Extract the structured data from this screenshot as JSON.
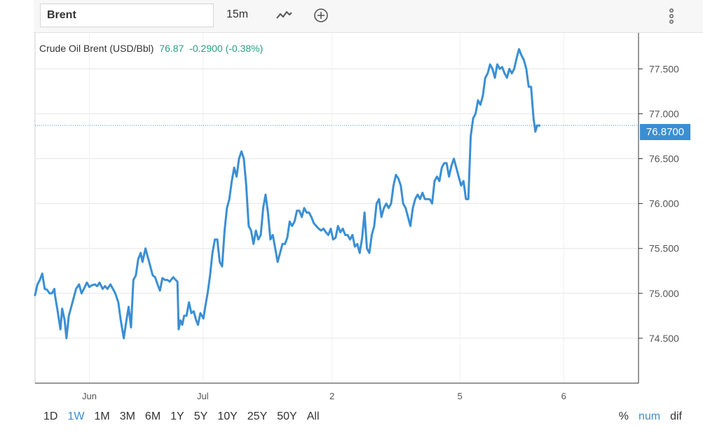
{
  "toolbar": {
    "symbol": "Brent",
    "interval": "15m",
    "chart_type_icon": "line-chart-icon",
    "add_icon": "plus-circle-icon",
    "menu_icon": "vertical-dots-icon"
  },
  "legend": {
    "name": "Crude Oil Brent (USD/Bbl)",
    "last": "76.87",
    "change": "-0.2900 (-0.38%)"
  },
  "price_tag": "76.8700",
  "range_buttons": [
    "1D",
    "1W",
    "1M",
    "3M",
    "6M",
    "1Y",
    "5Y",
    "10Y",
    "25Y",
    "50Y",
    "All"
  ],
  "active_range": "1W",
  "mode_buttons": [
    "%",
    "num",
    "dif"
  ],
  "active_mode": "num",
  "colors": {
    "line": "#3a8fd4",
    "accent": "#3a8fd4",
    "positive": "#2a9d7f"
  },
  "chart_data": {
    "type": "line",
    "title": "Crude Oil Brent (USD/Bbl)",
    "ylim": [
      74.0,
      77.9
    ],
    "yticks": [
      "74.500",
      "75.000",
      "75.500",
      "76.000",
      "76.500",
      "77.000",
      "77.500"
    ],
    "ytick_values": [
      74.5,
      75.0,
      75.5,
      76.0,
      76.5,
      77.0,
      77.5
    ],
    "xlim": [
      0,
      100
    ],
    "xticks": [
      {
        "label": "Jun",
        "x": 9
      },
      {
        "label": "Jul",
        "x": 27.8
      },
      {
        "label": "2",
        "x": 49.2
      },
      {
        "label": "5",
        "x": 70.4
      },
      {
        "label": "6",
        "x": 87.6
      }
    ],
    "last_value": 76.87,
    "grid": true,
    "series": [
      {
        "values": [
          [
            0,
            74.98
          ],
          [
            0.4,
            75.1
          ],
          [
            0.8,
            75.15
          ],
          [
            1.2,
            75.22
          ],
          [
            1.6,
            75.05
          ],
          [
            2.0,
            75.04
          ],
          [
            2.4,
            75.0
          ],
          [
            2.8,
            75.0
          ],
          [
            3.2,
            75.05
          ],
          [
            3.3,
            74.98
          ],
          [
            3.7,
            74.82
          ],
          [
            4.2,
            74.6
          ],
          [
            4.5,
            74.83
          ],
          [
            4.9,
            74.7
          ],
          [
            5.2,
            74.5
          ],
          [
            5.6,
            74.75
          ],
          [
            6.0,
            74.85
          ],
          [
            6.4,
            74.95
          ],
          [
            6.8,
            75.05
          ],
          [
            7.3,
            75.1
          ],
          [
            7.7,
            75.0
          ],
          [
            8.1,
            75.05
          ],
          [
            8.6,
            75.12
          ],
          [
            9.0,
            75.07
          ],
          [
            9.4,
            75.09
          ],
          [
            9.9,
            75.1
          ],
          [
            10.3,
            75.08
          ],
          [
            10.7,
            75.12
          ],
          [
            11.2,
            75.05
          ],
          [
            11.6,
            75.08
          ],
          [
            12.0,
            75.05
          ],
          [
            12.5,
            75.1
          ],
          [
            12.9,
            75.05
          ],
          [
            13.3,
            75.0
          ],
          [
            13.8,
            74.9
          ],
          [
            14.2,
            74.7
          ],
          [
            14.7,
            74.5
          ],
          [
            15.1,
            74.68
          ],
          [
            15.5,
            74.85
          ],
          [
            15.9,
            74.62
          ],
          [
            16.3,
            75.15
          ],
          [
            16.7,
            75.2
          ],
          [
            17.1,
            75.38
          ],
          [
            17.5,
            75.45
          ],
          [
            17.8,
            75.35
          ],
          [
            18.3,
            75.5
          ],
          [
            18.7,
            75.4
          ],
          [
            19.1,
            75.3
          ],
          [
            19.5,
            75.2
          ],
          [
            19.9,
            75.18
          ],
          [
            20.3,
            75.1
          ],
          [
            20.7,
            75.03
          ],
          [
            21.1,
            75.17
          ],
          [
            21.5,
            75.15
          ],
          [
            21.9,
            75.15
          ],
          [
            22.3,
            75.13
          ],
          [
            22.9,
            75.18
          ],
          [
            23.3,
            75.15
          ],
          [
            23.6,
            75.13
          ],
          [
            23.8,
            74.6
          ],
          [
            24.1,
            74.7
          ],
          [
            24.4,
            74.65
          ],
          [
            24.7,
            74.75
          ],
          [
            25.1,
            74.75
          ],
          [
            25.5,
            74.9
          ],
          [
            25.9,
            74.78
          ],
          [
            26.3,
            74.8
          ],
          [
            26.7,
            74.7
          ],
          [
            27.0,
            74.65
          ],
          [
            27.4,
            74.78
          ],
          [
            27.9,
            74.72
          ],
          [
            28.2,
            74.85
          ],
          [
            28.6,
            75.0
          ],
          [
            29.0,
            75.2
          ],
          [
            29.4,
            75.45
          ],
          [
            29.8,
            75.6
          ],
          [
            30.2,
            75.6
          ],
          [
            30.6,
            75.35
          ],
          [
            31.0,
            75.3
          ],
          [
            31.4,
            75.7
          ],
          [
            31.8,
            75.95
          ],
          [
            32.2,
            76.05
          ],
          [
            32.6,
            76.25
          ],
          [
            33.0,
            76.4
          ],
          [
            33.4,
            76.3
          ],
          [
            33.8,
            76.5
          ],
          [
            34.2,
            76.58
          ],
          [
            34.6,
            76.5
          ],
          [
            35.0,
            76.2
          ],
          [
            35.4,
            75.75
          ],
          [
            35.8,
            75.7
          ],
          [
            36.2,
            75.55
          ],
          [
            36.6,
            75.7
          ],
          [
            37.0,
            75.6
          ],
          [
            37.4,
            75.65
          ],
          [
            37.8,
            75.95
          ],
          [
            38.2,
            76.1
          ],
          [
            38.6,
            75.9
          ],
          [
            39.0,
            75.6
          ],
          [
            39.4,
            75.65
          ],
          [
            39.8,
            75.5
          ],
          [
            40.2,
            75.35
          ],
          [
            40.6,
            75.45
          ],
          [
            41.0,
            75.55
          ],
          [
            41.4,
            75.55
          ],
          [
            41.8,
            75.62
          ],
          [
            42.2,
            75.8
          ],
          [
            42.6,
            75.75
          ],
          [
            43.0,
            75.8
          ],
          [
            43.4,
            75.92
          ],
          [
            43.8,
            75.92
          ],
          [
            44.2,
            75.85
          ],
          [
            44.6,
            75.95
          ],
          [
            45.0,
            75.9
          ],
          [
            45.4,
            75.9
          ],
          [
            45.8,
            75.85
          ],
          [
            46.2,
            75.78
          ],
          [
            46.6,
            75.75
          ],
          [
            47.0,
            75.72
          ],
          [
            47.4,
            75.7
          ],
          [
            47.8,
            75.72
          ],
          [
            48.2,
            75.68
          ],
          [
            48.6,
            75.65
          ],
          [
            49.0,
            75.72
          ],
          [
            49.4,
            75.6
          ],
          [
            49.8,
            75.62
          ],
          [
            50.2,
            75.75
          ],
          [
            50.6,
            75.68
          ],
          [
            51.0,
            75.72
          ],
          [
            51.4,
            75.65
          ],
          [
            51.8,
            75.65
          ],
          [
            52.2,
            75.6
          ],
          [
            52.6,
            75.65
          ],
          [
            53.0,
            75.52
          ],
          [
            53.4,
            75.55
          ],
          [
            53.8,
            75.45
          ],
          [
            54.2,
            75.62
          ],
          [
            54.6,
            75.9
          ],
          [
            55.0,
            75.5
          ],
          [
            55.4,
            75.45
          ],
          [
            55.8,
            75.65
          ],
          [
            56.2,
            75.75
          ],
          [
            56.6,
            76.0
          ],
          [
            57.0,
            76.05
          ],
          [
            57.4,
            75.85
          ],
          [
            57.8,
            75.95
          ],
          [
            58.2,
            76.0
          ],
          [
            58.6,
            75.95
          ],
          [
            59.0,
            76.0
          ],
          [
            59.4,
            76.2
          ],
          [
            59.8,
            76.32
          ],
          [
            60.2,
            76.28
          ],
          [
            60.6,
            76.2
          ],
          [
            61.0,
            76.0
          ],
          [
            61.4,
            75.95
          ],
          [
            61.8,
            75.85
          ],
          [
            62.2,
            75.75
          ],
          [
            62.6,
            75.95
          ],
          [
            63.0,
            76.05
          ],
          [
            63.4,
            76.1
          ],
          [
            63.8,
            76.05
          ],
          [
            64.2,
            76.12
          ],
          [
            64.6,
            76.05
          ],
          [
            65.0,
            76.05
          ],
          [
            65.4,
            76.05
          ],
          [
            65.8,
            76.0
          ],
          [
            66.2,
            76.25
          ],
          [
            66.6,
            76.3
          ],
          [
            67.0,
            76.25
          ],
          [
            67.4,
            76.4
          ],
          [
            67.8,
            76.45
          ],
          [
            68.2,
            76.45
          ],
          [
            68.6,
            76.3
          ],
          [
            69.0,
            76.42
          ],
          [
            69.4,
            76.5
          ],
          [
            69.8,
            76.4
          ],
          [
            70.2,
            76.3
          ],
          [
            70.6,
            76.2
          ],
          [
            71.0,
            76.25
          ],
          [
            71.4,
            76.05
          ],
          [
            71.8,
            76.05
          ],
          [
            72.2,
            76.75
          ],
          [
            72.6,
            76.95
          ],
          [
            73.0,
            77.0
          ],
          [
            73.4,
            77.15
          ],
          [
            73.8,
            77.1
          ],
          [
            74.2,
            77.2
          ],
          [
            74.6,
            77.4
          ],
          [
            75.0,
            77.45
          ],
          [
            75.4,
            77.55
          ],
          [
            75.8,
            77.5
          ],
          [
            76.2,
            77.4
          ],
          [
            76.6,
            77.55
          ],
          [
            77.0,
            77.5
          ],
          [
            77.4,
            77.52
          ],
          [
            77.8,
            77.45
          ],
          [
            78.2,
            77.4
          ],
          [
            78.6,
            77.5
          ],
          [
            79.0,
            77.45
          ],
          [
            79.4,
            77.5
          ],
          [
            79.8,
            77.62
          ],
          [
            80.2,
            77.72
          ],
          [
            80.6,
            77.65
          ],
          [
            81.0,
            77.6
          ],
          [
            81.4,
            77.5
          ],
          [
            81.8,
            77.3
          ],
          [
            82.2,
            77.3
          ],
          [
            82.6,
            76.95
          ],
          [
            82.9,
            76.8
          ],
          [
            83.2,
            76.87
          ],
          [
            83.6,
            76.87
          ]
        ]
      }
    ]
  }
}
